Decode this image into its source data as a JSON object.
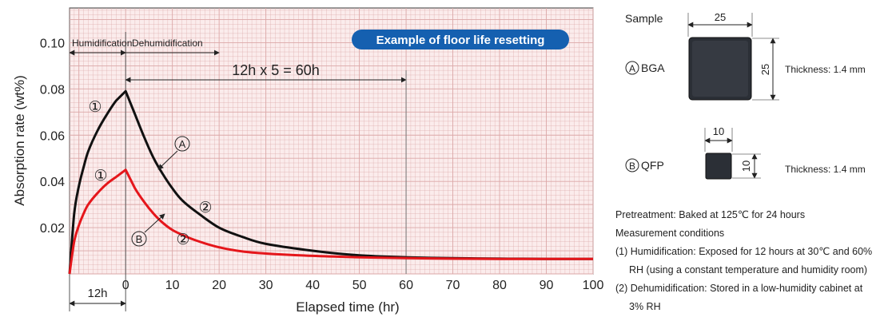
{
  "chart_data": {
    "type": "line",
    "title": "",
    "xlabel": "Elapsed time (hr)",
    "ylabel": "Absorption rate (wt%)",
    "xlim": [
      -12,
      100
    ],
    "ylim": [
      0,
      0.115
    ],
    "x_ticks": [
      "0",
      "10",
      "20",
      "30",
      "40",
      "50",
      "60",
      "70",
      "80",
      "90",
      "100"
    ],
    "y_ticks": [
      "0.02",
      "0.04",
      "0.06",
      "0.08",
      "0.10"
    ],
    "grid": true,
    "series": [
      {
        "name": "A",
        "color": "#111111",
        "x": [
          -12,
          -11,
          -10,
          -9,
          -8,
          -6,
          -4,
          -2,
          0,
          2,
          4,
          6,
          8,
          10,
          12,
          15,
          20,
          25,
          30,
          40,
          50,
          60,
          70,
          80,
          90,
          100
        ],
        "y": [
          0.0,
          0.026,
          0.038,
          0.046,
          0.053,
          0.062,
          0.069,
          0.075,
          0.079,
          0.069,
          0.059,
          0.05,
          0.043,
          0.037,
          0.032,
          0.027,
          0.02,
          0.016,
          0.013,
          0.01,
          0.008,
          0.0072,
          0.0068,
          0.0066,
          0.0065,
          0.0065
        ]
      },
      {
        "name": "B",
        "color": "#e5161b",
        "x": [
          -12,
          -11,
          -10,
          -9,
          -8,
          -6,
          -4,
          -2,
          0,
          2,
          4,
          6,
          8,
          10,
          12,
          15,
          20,
          25,
          30,
          40,
          50,
          60,
          70,
          80,
          90,
          100
        ],
        "y": [
          0.0,
          0.014,
          0.021,
          0.026,
          0.03,
          0.035,
          0.039,
          0.042,
          0.045,
          0.037,
          0.031,
          0.026,
          0.022,
          0.019,
          0.017,
          0.0145,
          0.0115,
          0.0097,
          0.0088,
          0.0078,
          0.0072,
          0.0068,
          0.0066,
          0.0065,
          0.0065,
          0.0065
        ]
      }
    ],
    "annotations": {
      "humidification": "Humidification",
      "dehumidification": "Dehumidification",
      "span_label": "12h x 5 = 60h",
      "span_range": [
        0,
        60
      ],
      "pre_span_label": "12h",
      "banner": "Example of floor life resetting",
      "step1": "①",
      "step2": "②",
      "curve_a": "A",
      "curve_b": "B"
    },
    "background_color": "#fbecec",
    "grid_color": "#dba7a7"
  },
  "samples": {
    "heading": "Sample",
    "bga": {
      "marker": "A",
      "label": "BGA",
      "width": "25",
      "height": "25",
      "thickness": "Thickness: 1.4 mm"
    },
    "qfp": {
      "marker": "B",
      "label": "QFP",
      "width": "10",
      "height": "10",
      "thickness": "Thickness: 1.4 mm"
    }
  },
  "notes": {
    "pretreatment": "Pretreatment: Baked at 125℃ for 24 hours",
    "conditions_heading": "Measurement conditions",
    "cond1_line1": "(1) Humidification: Exposed for 12 hours at 30℃ and 60%",
    "cond1_line2": "RH (using a constant temperature and humidity room)",
    "cond2_line1": "(2) Dehumidification: Stored in a low-humidity cabinet at",
    "cond2_line2": "3% RH"
  }
}
